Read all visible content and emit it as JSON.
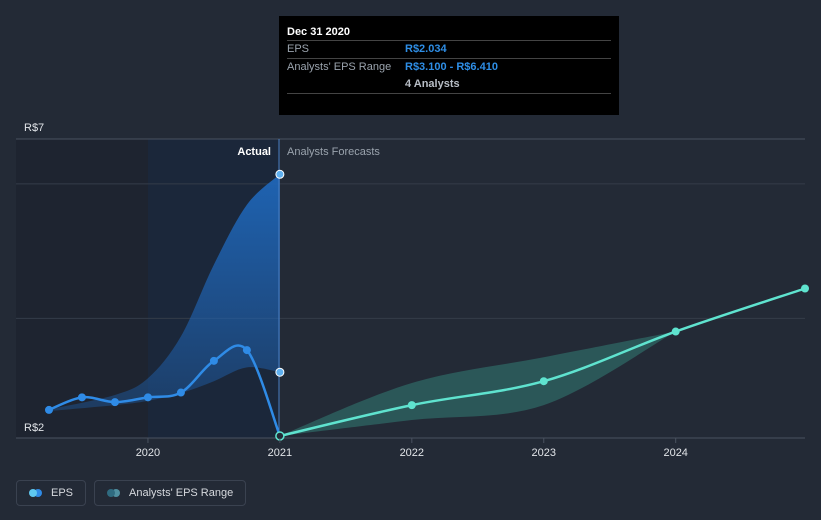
{
  "chart_data": {
    "type": "line",
    "y_labels": {
      "top": "R$7",
      "bottom": "R$2"
    },
    "ylim": [
      2,
      7
    ],
    "xlim": [
      2019.0,
      2024.98
    ],
    "x_ticks": [
      {
        "value": 2020.0,
        "label": "2020"
      },
      {
        "value": 2021.0,
        "label": "2021"
      },
      {
        "value": 2022.0,
        "label": "2022"
      },
      {
        "value": 2023.0,
        "label": "2023"
      },
      {
        "value": 2024.0,
        "label": "2024"
      }
    ],
    "divider_x": 2021.0,
    "region_labels": {
      "actual": "Actual",
      "forecast": "Analysts Forecasts"
    },
    "colors": {
      "eps": "#2f8be6",
      "forecast": "#5fe3cf",
      "actual_band": "#1f66b8",
      "forecast_band": "#2f6b66",
      "background": "#232a36"
    },
    "series": [
      {
        "name": "EPS",
        "points": [
          {
            "x": 2019.25,
            "y": 2.47
          },
          {
            "x": 2019.5,
            "y": 2.68
          },
          {
            "x": 2019.75,
            "y": 2.6
          },
          {
            "x": 2020.0,
            "y": 2.68
          },
          {
            "x": 2020.25,
            "y": 2.76
          },
          {
            "x": 2020.5,
            "y": 3.29
          },
          {
            "x": 2020.75,
            "y": 3.47
          },
          {
            "x": 2021.0,
            "y": 2.034
          }
        ]
      },
      {
        "name": "EPS forecast",
        "points": [
          {
            "x": 2021.0,
            "y": 2.034
          },
          {
            "x": 2022.0,
            "y": 2.55
          },
          {
            "x": 2023.0,
            "y": 2.95
          },
          {
            "x": 2024.0,
            "y": 3.78
          },
          {
            "x": 2024.98,
            "y": 4.5
          }
        ]
      }
    ],
    "actual_range_band": {
      "upper": [
        {
          "x": 2019.25,
          "y": 2.48
        },
        {
          "x": 2019.75,
          "y": 2.72
        },
        {
          "x": 2020.0,
          "y": 3.0
        },
        {
          "x": 2020.25,
          "y": 3.7
        },
        {
          "x": 2020.5,
          "y": 4.9
        },
        {
          "x": 2020.75,
          "y": 5.9
        },
        {
          "x": 2021.0,
          "y": 6.41
        }
      ],
      "lower": [
        {
          "x": 2019.25,
          "y": 2.45
        },
        {
          "x": 2019.75,
          "y": 2.55
        },
        {
          "x": 2020.0,
          "y": 2.62
        },
        {
          "x": 2020.25,
          "y": 2.75
        },
        {
          "x": 2020.5,
          "y": 2.95
        },
        {
          "x": 2020.75,
          "y": 3.18
        },
        {
          "x": 2021.0,
          "y": 3.1
        }
      ]
    },
    "forecast_range_band": {
      "upper": [
        {
          "x": 2021.0,
          "y": 2.034
        },
        {
          "x": 2022.0,
          "y": 2.92
        },
        {
          "x": 2023.0,
          "y": 3.35
        },
        {
          "x": 2024.0,
          "y": 3.78
        }
      ],
      "lower": [
        {
          "x": 2021.0,
          "y": 2.034
        },
        {
          "x": 2022.0,
          "y": 2.3
        },
        {
          "x": 2023.0,
          "y": 2.55
        },
        {
          "x": 2024.0,
          "y": 3.78
        }
      ]
    },
    "highlight_markers": [
      {
        "x": 2021.0,
        "y": 6.41
      },
      {
        "x": 2021.0,
        "y": 3.1
      }
    ]
  },
  "tooltip": {
    "date": "Dec 31 2020",
    "rows": [
      {
        "key": "EPS",
        "value": "R$2.034"
      },
      {
        "key": "Analysts' EPS Range",
        "value": "R$3.100 - R$6.410",
        "sub": "4 Analysts"
      }
    ]
  },
  "legend": [
    {
      "label": "EPS",
      "color_a": "#5fc8f0",
      "color_b": "#2f8be6"
    },
    {
      "label": "Analysts' EPS Range",
      "color_a": "#2f6b80",
      "color_b": "#4f8fa0"
    }
  ]
}
